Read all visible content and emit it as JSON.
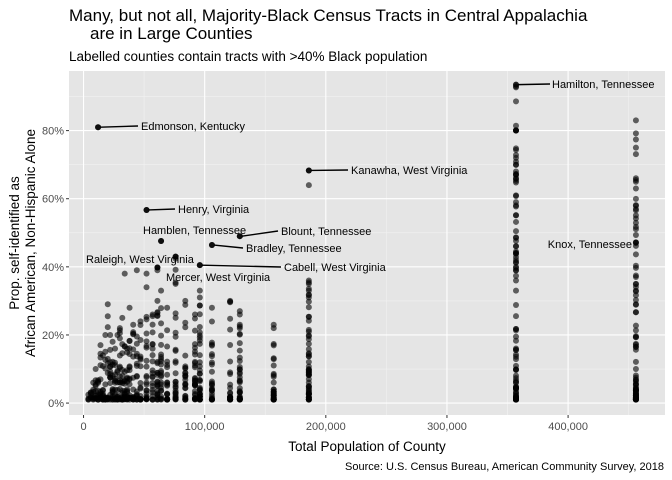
{
  "chart_data": {
    "type": "scatter",
    "title_line1": "Many, but not all, Majority-Black Census Tracts in Central Appalachia",
    "title_line2": "are in Large Counties",
    "subtitle": "Labelled counties contain tracts with >40% Black population",
    "xlabel": "Total Population of County",
    "ylabel_line1": "Prop. self-identified as",
    "ylabel_line2": "African American, Non-Hispanic Alone",
    "caption": "Source: U.S. Census Bureau, American Community Survey, 2018",
    "xlim": [
      -12000,
      480000
    ],
    "ylim": [
      -0.035,
      0.975
    ],
    "x_ticks": [
      {
        "value": 0,
        "label": "0"
      },
      {
        "value": 100000,
        "label": "100,000"
      },
      {
        "value": 200000,
        "label": "200,000"
      },
      {
        "value": 300000,
        "label": "300,000"
      },
      {
        "value": 400000,
        "label": "400,000"
      }
    ],
    "y_ticks": [
      {
        "value": 0,
        "label": "0%"
      },
      {
        "value": 0.2,
        "label": "20%"
      },
      {
        "value": 0.4,
        "label": "40%"
      },
      {
        "value": 0.6,
        "label": "60%"
      },
      {
        "value": 0.8,
        "label": "80%"
      }
    ],
    "point_color": "#000000",
    "point_opacity": 0.6,
    "grid": true,
    "panel_background": "#e5e5e5",
    "labelled_points": [
      {
        "county": "Hamilton, Tennessee",
        "x": 357000,
        "y": 0.935
      },
      {
        "county": "Edmonson, Kentucky",
        "x": 12000,
        "y": 0.81
      },
      {
        "county": "Kanawha, West Virginia",
        "x": 186000,
        "y": 0.683
      },
      {
        "county": "Henry, Virginia",
        "x": 52000,
        "y": 0.567
      },
      {
        "county": "Blount, Tennessee",
        "x": 129000,
        "y": 0.49
      },
      {
        "county": "Hamblen, Tennessee",
        "x": 64000,
        "y": 0.476
      },
      {
        "county": "Bradley, Tennessee",
        "x": 106000,
        "y": 0.464
      },
      {
        "county": "Knox, Tennessee",
        "x": 456000,
        "y": 0.472
      },
      {
        "county": "Raleigh, West Virginia",
        "x": 76000,
        "y": 0.43
      },
      {
        "county": "Cabell, West Virginia",
        "x": 96000,
        "y": 0.405
      },
      {
        "county": "Mercer, West Virginia",
        "x": 61000,
        "y": 0.398
      }
    ],
    "counties": [
      {
        "x": 357000,
        "n": 90,
        "ymax": 0.93,
        "extra": [
          0.93,
          0.8,
          0.72,
          0.7,
          0.68,
          0.66,
          0.61,
          0.59,
          0.46,
          0.44,
          0.42,
          0.4,
          0.36,
          0.33
        ]
      },
      {
        "x": 456000,
        "n": 85,
        "ymax": 0.83,
        "extra": [
          0.83,
          0.75,
          0.66,
          0.65,
          0.63,
          0.57,
          0.47,
          0.37,
          0.35,
          0.33,
          0.29
        ]
      },
      {
        "x": 186000,
        "n": 55,
        "ymax": 0.36,
        "extra": [
          0.683,
          0.64,
          0.36,
          0.35,
          0.33,
          0.31
        ]
      },
      {
        "x": 157000,
        "n": 30,
        "ymax": 0.23,
        "extra": [
          0.23,
          0.22
        ]
      },
      {
        "x": 129000,
        "n": 35,
        "ymax": 0.27,
        "extra": [
          0.49,
          0.27
        ]
      },
      {
        "x": 121000,
        "n": 25,
        "ymax": 0.3,
        "extra": [
          0.3
        ]
      },
      {
        "x": 106000,
        "n": 25,
        "ymax": 0.28,
        "extra": [
          0.464,
          0.28
        ]
      },
      {
        "x": 96000,
        "n": 35,
        "ymax": 0.32,
        "extra": [
          0.405,
          0.33,
          0.31
        ]
      },
      {
        "x": 92000,
        "n": 30,
        "ymax": 0.26,
        "extra": [
          0.26
        ]
      },
      {
        "x": 84000,
        "n": 25,
        "ymax": 0.3,
        "extra": [
          0.3
        ]
      },
      {
        "x": 76000,
        "n": 28,
        "ymax": 0.43,
        "extra": [
          0.43,
          0.35
        ]
      },
      {
        "x": 69000,
        "n": 22,
        "ymax": 0.28,
        "extra": [
          0.28
        ]
      },
      {
        "x": 64000,
        "n": 22,
        "ymax": 0.33,
        "extra": [
          0.476,
          0.33
        ]
      },
      {
        "x": 61000,
        "n": 22,
        "ymax": 0.3,
        "extra": [
          0.398,
          0.39,
          0.3
        ]
      },
      {
        "x": 57000,
        "n": 20,
        "ymax": 0.26,
        "extra": [
          0.26
        ]
      },
      {
        "x": 52000,
        "n": 22,
        "ymax": 0.34,
        "extra": [
          0.567,
          0.38,
          0.34
        ]
      },
      {
        "x": 47000,
        "n": 18,
        "ymax": 0.24,
        "extra": [
          0.24
        ]
      },
      {
        "x": 44000,
        "n": 16,
        "ymax": 0.25,
        "extra": [
          0.39
        ]
      },
      {
        "x": 41000,
        "n": 16,
        "ymax": 0.23,
        "extra": [
          0.23
        ]
      },
      {
        "x": 38000,
        "n": 16,
        "ymax": 0.28,
        "extra": [
          0.28
        ]
      },
      {
        "x": 36000,
        "n": 14,
        "ymax": 0.16,
        "extra": [
          0.16
        ]
      },
      {
        "x": 34000,
        "n": 14,
        "ymax": 0.2,
        "extra": [
          0.38
        ]
      },
      {
        "x": 32000,
        "n": 14,
        "ymax": 0.25,
        "extra": [
          0.25
        ]
      },
      {
        "x": 30000,
        "n": 14,
        "ymax": 0.22,
        "extra": [
          0.22
        ]
      },
      {
        "x": 28000,
        "n": 12,
        "ymax": 0.2,
        "extra": [
          0.2
        ]
      },
      {
        "x": 26000,
        "n": 12,
        "ymax": 0.16,
        "extra": [
          0.16
        ]
      },
      {
        "x": 24000,
        "n": 12,
        "ymax": 0.18,
        "extra": [
          0.18
        ]
      },
      {
        "x": 22000,
        "n": 12,
        "ymax": 0.2,
        "extra": [
          0.2
        ]
      },
      {
        "x": 20000,
        "n": 12,
        "ymax": 0.29,
        "extra": [
          0.29
        ]
      },
      {
        "x": 18000,
        "n": 10,
        "ymax": 0.2,
        "extra": [
          0.2
        ]
      },
      {
        "x": 16000,
        "n": 10,
        "ymax": 0.14,
        "extra": [
          0.14
        ]
      },
      {
        "x": 14000,
        "n": 10,
        "ymax": 0.17,
        "extra": [
          0.17
        ]
      },
      {
        "x": 12000,
        "n": 9,
        "ymax": 0.12,
        "extra": [
          0.81
        ]
      },
      {
        "x": 10000,
        "n": 8,
        "ymax": 0.1,
        "extra": [
          0.1
        ]
      },
      {
        "x": 8000,
        "n": 6,
        "ymax": 0.06,
        "extra": [
          0.06
        ]
      },
      {
        "x": 6000,
        "n": 5,
        "ymax": 0.04,
        "extra": []
      },
      {
        "x": 4000,
        "n": 4,
        "ymax": 0.03,
        "extra": []
      }
    ]
  }
}
